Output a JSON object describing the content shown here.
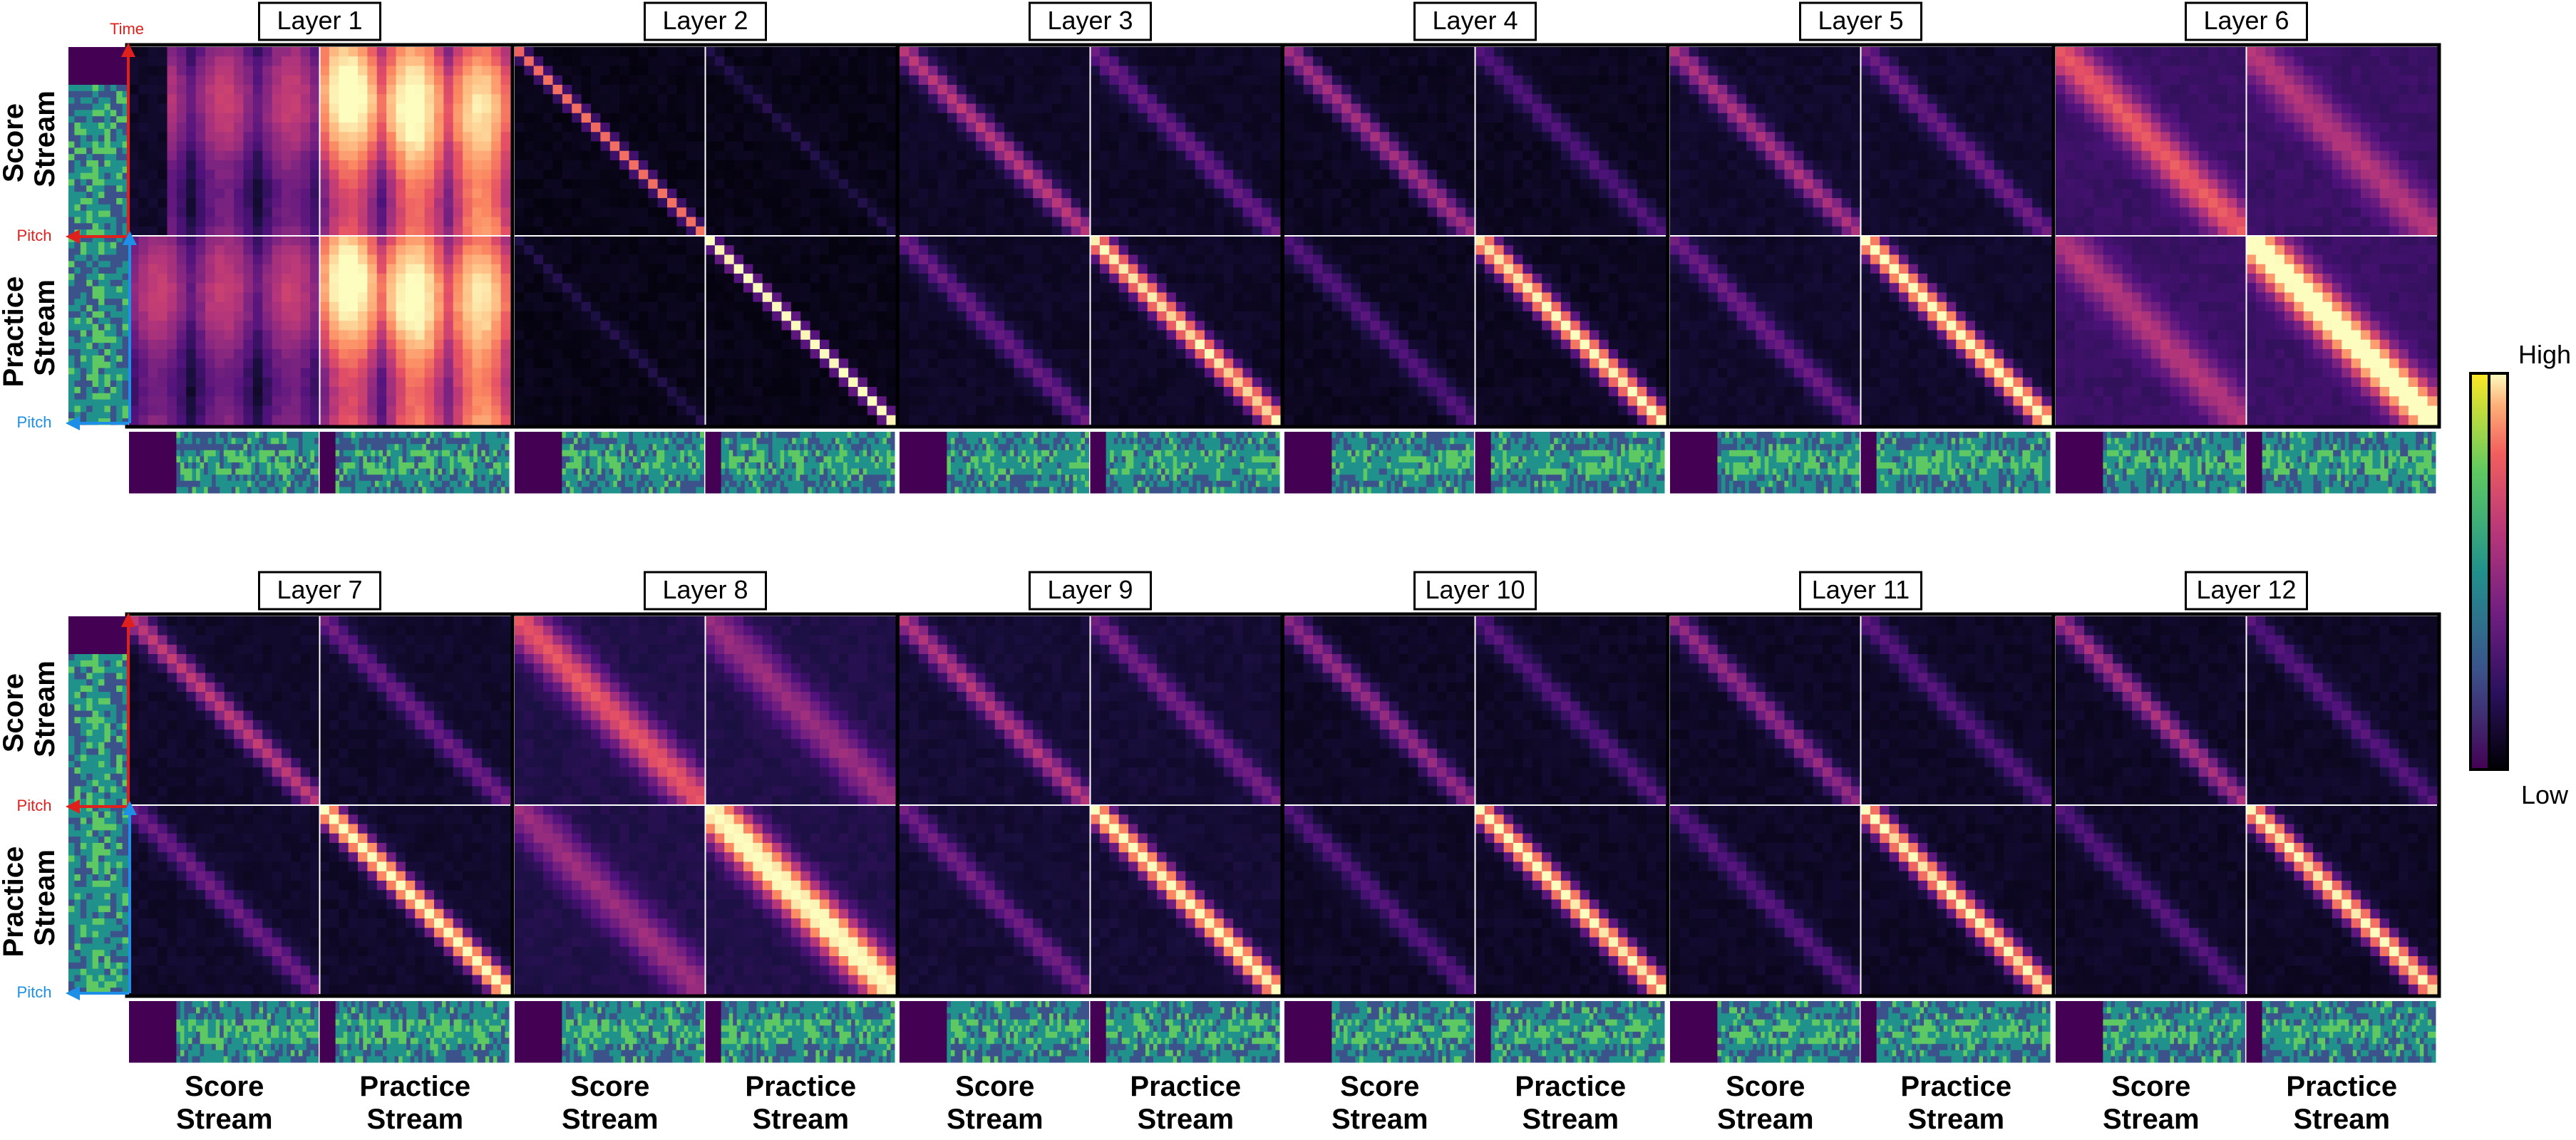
{
  "figure": {
    "row_title_score": [
      "Score",
      "Stream"
    ],
    "row_title_practice": [
      "Practice",
      "Stream"
    ],
    "col_title_score": [
      "Score",
      "Stream"
    ],
    "col_title_practice": [
      "Practice",
      "Stream"
    ],
    "axis_time": "Time",
    "axis_pitch": "Pitch",
    "colorbar_high": "High",
    "colorbar_low": "Low"
  },
  "colors": {
    "time_axis": "#e0201c",
    "pitch_score_axis": "#e0201c",
    "pitch_practice_axis": "#1e8fe6",
    "colormap": "magma",
    "spectrogram_colormap": "viridis"
  },
  "chart_data": {
    "type": "heatmap",
    "title": "",
    "panels": [
      {
        "label": "Layer 1",
        "base": 0.3,
        "diag": 0.15,
        "cross": 0.1,
        "pp": 0.1,
        "pattern": "banded",
        "note": "bright warm bands over whole matrix"
      },
      {
        "label": "Layer 2",
        "base": 0.02,
        "diag": 0.65,
        "cross": 0.1,
        "pp": 0.95,
        "pattern": "sharp"
      },
      {
        "label": "Layer 3",
        "base": 0.05,
        "diag": 0.45,
        "cross": 0.25,
        "pp": 0.85,
        "pattern": "diag"
      },
      {
        "label": "Layer 4",
        "base": 0.04,
        "diag": 0.4,
        "cross": 0.2,
        "pp": 0.9,
        "pattern": "diag"
      },
      {
        "label": "Layer 5",
        "base": 0.06,
        "diag": 0.4,
        "cross": 0.25,
        "pp": 0.92,
        "pattern": "diag"
      },
      {
        "label": "Layer 6",
        "base": 0.18,
        "diag": 0.45,
        "cross": 0.3,
        "pp": 0.9,
        "pattern": "wide"
      },
      {
        "label": "Layer 7",
        "base": 0.06,
        "diag": 0.45,
        "cross": 0.25,
        "pp": 0.95,
        "pattern": "diag"
      },
      {
        "label": "Layer 8",
        "base": 0.12,
        "diag": 0.5,
        "cross": 0.3,
        "pp": 0.92,
        "pattern": "wide"
      },
      {
        "label": "Layer 9",
        "base": 0.08,
        "diag": 0.4,
        "cross": 0.25,
        "pp": 0.9,
        "pattern": "diag"
      },
      {
        "label": "Layer 10",
        "base": 0.05,
        "diag": 0.35,
        "cross": 0.2,
        "pp": 0.9,
        "pattern": "diag"
      },
      {
        "label": "Layer 11",
        "base": 0.05,
        "diag": 0.35,
        "cross": 0.2,
        "pp": 0.88,
        "pattern": "diag"
      },
      {
        "label": "Layer 12",
        "base": 0.05,
        "diag": 0.4,
        "cross": 0.2,
        "pp": 0.88,
        "pattern": "diag"
      }
    ],
    "grid_cells_per_block": 20,
    "blocks": [
      "Score Stream",
      "Practice Stream"
    ],
    "colorbar": {
      "high": "High",
      "low": "Low"
    }
  }
}
